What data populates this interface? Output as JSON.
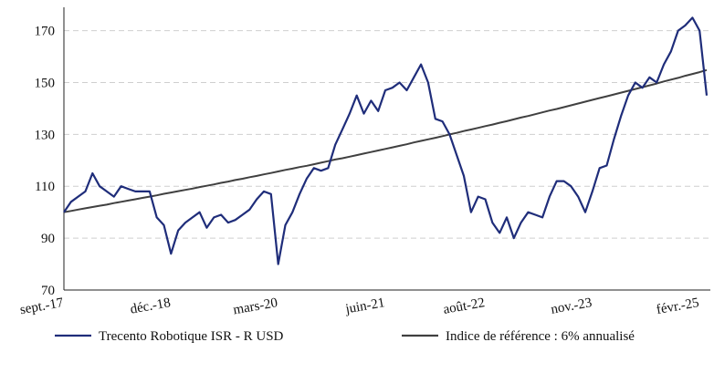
{
  "chart_data": {
    "type": "line",
    "categories": [
      "sept.-17",
      null,
      null,
      null,
      null,
      null,
      null,
      null,
      null,
      null,
      null,
      null,
      null,
      null,
      null,
      "déc.-18",
      null,
      null,
      null,
      null,
      null,
      null,
      null,
      null,
      null,
      null,
      null,
      null,
      null,
      null,
      "mars-20",
      null,
      null,
      null,
      null,
      null,
      null,
      null,
      null,
      null,
      null,
      null,
      null,
      null,
      null,
      "juin-21",
      null,
      null,
      null,
      null,
      null,
      null,
      null,
      null,
      null,
      null,
      null,
      null,
      null,
      "août-22",
      null,
      null,
      null,
      null,
      null,
      null,
      null,
      null,
      null,
      null,
      null,
      null,
      null,
      null,
      "nov.-23",
      null,
      null,
      null,
      null,
      null,
      null,
      null,
      null,
      null,
      null,
      null,
      null,
      null,
      null,
      "févr.-25",
      null
    ],
    "series": [
      {
        "name": "Trecento Robotique ISR - R USD",
        "color": "#1f2d7a",
        "values": [
          100,
          104,
          106,
          108,
          115,
          110,
          108,
          106,
          110,
          109,
          108,
          108,
          108,
          98,
          95,
          84,
          93,
          96,
          98,
          100,
          94,
          98,
          99,
          96,
          97,
          99,
          101,
          105,
          108,
          107,
          80,
          95,
          100,
          107,
          113,
          117,
          116,
          117,
          126,
          132,
          138,
          145,
          138,
          143,
          139,
          147,
          148,
          150,
          147,
          152,
          157,
          150,
          136,
          135,
          130,
          122,
          114,
          100,
          106,
          105,
          96,
          92,
          98,
          90,
          96,
          100,
          99,
          98,
          106,
          112,
          112,
          110,
          106,
          100,
          108,
          117,
          118,
          128,
          137,
          145,
          150,
          148,
          152,
          150,
          157,
          162,
          170,
          172,
          175,
          170,
          145
        ]
      },
      {
        "name": "Indice de référence : 6% annualisé",
        "color": "#404040",
        "values": [
          100,
          100.5,
          101.0,
          101.5,
          102.0,
          102.5,
          102.9,
          103.5,
          104.0,
          104.5,
          105.0,
          105.5,
          106,
          106.5,
          107.1,
          107.6,
          108.1,
          108.6,
          109.1,
          109.7,
          110.2,
          110.7,
          111.3,
          111.8,
          112.4,
          112.9,
          113.5,
          114.0,
          114.6,
          115.1,
          115.7,
          116.3,
          116.8,
          117.4,
          117.9,
          118.5,
          119.1,
          119.7,
          120.3,
          120.8,
          121.4,
          122.0,
          122.6,
          123.2,
          123.8,
          124.4,
          125.0,
          125.6,
          126.2,
          126.9,
          127.5,
          128.1,
          128.7,
          129.3,
          130.0,
          130.6,
          131.3,
          131.9,
          132.5,
          133.2,
          133.8,
          134.5,
          135.1,
          135.8,
          136.5,
          137.1,
          137.8,
          138.5,
          139.2,
          139.8,
          140.5,
          141.2,
          141.9,
          142.6,
          143.3,
          144.0,
          144.7,
          145.4,
          146.1,
          146.8,
          147.5,
          148.2,
          148.9,
          149.6,
          150.4,
          151.1,
          151.8,
          152.6,
          153.3,
          154.0,
          154.8
        ]
      }
    ],
    "ylim": [
      70,
      179
    ],
    "yticks": [
      70,
      90,
      110,
      130,
      150,
      170
    ],
    "grid": true
  }
}
